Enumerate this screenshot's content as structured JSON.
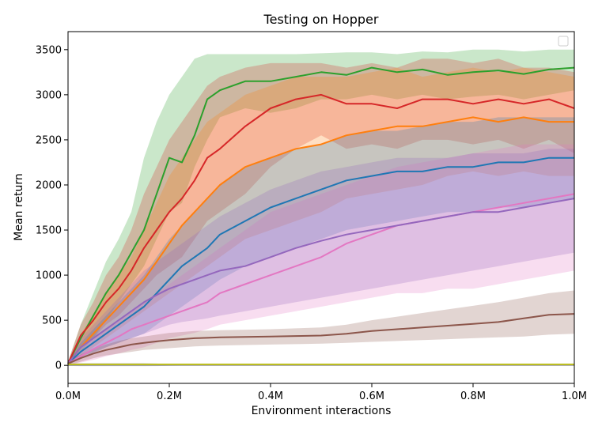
{
  "chart_data": {
    "type": "line",
    "title": "Testing on Hopper",
    "xlabel": "Environment interactions",
    "ylabel": "Mean return",
    "xlim": [
      0,
      1.0
    ],
    "ylim": [
      -200,
      3700
    ],
    "xticks": [
      0,
      0.2,
      0.4,
      0.6,
      0.8,
      1.0
    ],
    "xtick_labels": [
      "0.0M",
      "0.2M",
      "0.4M",
      "0.6M",
      "0.8M",
      "1.0M"
    ],
    "yticks": [
      0,
      500,
      1000,
      1500,
      2000,
      2500,
      3000,
      3500
    ],
    "ytick_labels": [
      "0",
      "500",
      "1000",
      "1500",
      "2000",
      "2500",
      "3000",
      "3500"
    ],
    "legend": "top-right (empty)",
    "grid": false,
    "band_opacity": 0.25,
    "x": [
      0,
      0.025,
      0.05,
      0.075,
      0.1,
      0.125,
      0.15,
      0.175,
      0.2,
      0.225,
      0.25,
      0.275,
      0.3,
      0.35,
      0.4,
      0.45,
      0.5,
      0.55,
      0.6,
      0.65,
      0.7,
      0.75,
      0.8,
      0.85,
      0.9,
      0.95,
      1.0
    ],
    "series": [
      {
        "color": "#2ca02c",
        "values": [
          20,
          300,
          550,
          800,
          1000,
          1250,
          1500,
          1900,
          2300,
          2250,
          2550,
          2950,
          3050,
          3150,
          3150,
          3200,
          3250,
          3220,
          3300,
          3250,
          3280,
          3220,
          3250,
          3270,
          3230,
          3280,
          3300
        ],
        "upper": [
          40,
          450,
          800,
          1150,
          1400,
          1700,
          2300,
          2700,
          3000,
          3200,
          3400,
          3450,
          3450,
          3450,
          3450,
          3450,
          3460,
          3470,
          3470,
          3450,
          3480,
          3470,
          3500,
          3500,
          3480,
          3500,
          3500
        ],
        "lower": [
          0,
          150,
          300,
          500,
          700,
          900,
          1100,
          1400,
          1700,
          1800,
          2200,
          2500,
          2750,
          2850,
          2800,
          2850,
          2950,
          2950,
          3000,
          2950,
          3000,
          2950,
          2980,
          3000,
          2950,
          3000,
          3050
        ]
      },
      {
        "color": "#d62728",
        "values": [
          20,
          330,
          500,
          700,
          850,
          1050,
          1300,
          1500,
          1700,
          1850,
          2050,
          2300,
          2400,
          2650,
          2850,
          2950,
          3000,
          2900,
          2900,
          2850,
          2950,
          2950,
          2900,
          2950,
          2900,
          2950,
          2850
        ],
        "upper": [
          40,
          450,
          700,
          1000,
          1200,
          1500,
          1900,
          2200,
          2500,
          2700,
          2900,
          3100,
          3200,
          3300,
          3350,
          3350,
          3350,
          3300,
          3350,
          3300,
          3400,
          3400,
          3350,
          3400,
          3300,
          3300,
          3250
        ],
        "lower": [
          0,
          200,
          300,
          450,
          550,
          700,
          850,
          1000,
          1100,
          1200,
          1400,
          1600,
          1700,
          1900,
          2200,
          2400,
          2550,
          2400,
          2450,
          2400,
          2500,
          2500,
          2450,
          2500,
          2400,
          2500,
          2350
        ]
      },
      {
        "color": "#ff7f0e",
        "values": [
          20,
          200,
          350,
          500,
          650,
          800,
          950,
          1150,
          1350,
          1550,
          1700,
          1850,
          2000,
          2200,
          2300,
          2400,
          2450,
          2550,
          2600,
          2650,
          2650,
          2700,
          2750,
          2700,
          2750,
          2700,
          2700
        ],
        "upper": [
          40,
          350,
          550,
          800,
          1000,
          1200,
          1500,
          1800,
          2100,
          2300,
          2500,
          2700,
          2800,
          3000,
          3100,
          3200,
          3200,
          3200,
          3250,
          3300,
          3200,
          3250,
          3300,
          3250,
          3300,
          3250,
          3200
        ],
        "lower": [
          0,
          100,
          200,
          300,
          400,
          500,
          600,
          700,
          800,
          900,
          1000,
          1100,
          1200,
          1400,
          1500,
          1600,
          1700,
          1850,
          1900,
          1950,
          2000,
          2100,
          2150,
          2100,
          2150,
          2100,
          2100
        ]
      },
      {
        "color": "#1f77b4",
        "values": [
          20,
          150,
          250,
          350,
          450,
          550,
          650,
          800,
          950,
          1100,
          1200,
          1300,
          1450,
          1600,
          1750,
          1850,
          1950,
          2050,
          2100,
          2150,
          2150,
          2200,
          2200,
          2250,
          2250,
          2300,
          2300
        ],
        "upper": [
          40,
          250,
          400,
          550,
          700,
          850,
          1000,
          1200,
          1400,
          1550,
          1700,
          1850,
          2000,
          2200,
          2300,
          2400,
          2450,
          2550,
          2600,
          2600,
          2650,
          2700,
          2700,
          2750,
          2750,
          2750,
          2750
        ],
        "lower": [
          0,
          80,
          130,
          200,
          250,
          300,
          350,
          450,
          550,
          650,
          750,
          850,
          950,
          1100,
          1200,
          1300,
          1400,
          1500,
          1550,
          1600,
          1650,
          1700,
          1700,
          1750,
          1750,
          1800,
          1850
        ]
      },
      {
        "color": "#e377c2",
        "values": [
          20,
          100,
          180,
          250,
          320,
          400,
          450,
          500,
          550,
          600,
          650,
          700,
          800,
          900,
          1000,
          1100,
          1200,
          1350,
          1450,
          1550,
          1600,
          1650,
          1700,
          1750,
          1800,
          1850,
          1900
        ],
        "upper": [
          40,
          200,
          300,
          400,
          500,
          600,
          700,
          800,
          900,
          1000,
          1100,
          1200,
          1300,
          1500,
          1700,
          1800,
          1900,
          2000,
          2100,
          2200,
          2250,
          2300,
          2350,
          2400,
          2450,
          2450,
          2450
        ],
        "lower": [
          0,
          30,
          60,
          100,
          130,
          170,
          200,
          250,
          300,
          330,
          360,
          400,
          450,
          500,
          550,
          600,
          650,
          700,
          750,
          800,
          800,
          850,
          850,
          900,
          950,
          1000,
          1050
        ]
      },
      {
        "color": "#9467bd",
        "values": [
          20,
          200,
          300,
          400,
          500,
          600,
          700,
          780,
          850,
          900,
          950,
          1000,
          1050,
          1100,
          1200,
          1300,
          1380,
          1450,
          1500,
          1550,
          1600,
          1650,
          1700,
          1700,
          1750,
          1800,
          1850
        ],
        "upper": [
          40,
          300,
          450,
          600,
          750,
          900,
          1050,
          1150,
          1250,
          1350,
          1450,
          1550,
          1650,
          1800,
          1950,
          2050,
          2150,
          2200,
          2250,
          2300,
          2300,
          2300,
          2350,
          2350,
          2350,
          2400,
          2400
        ],
        "lower": [
          0,
          100,
          150,
          200,
          250,
          300,
          350,
          400,
          450,
          480,
          500,
          520,
          550,
          600,
          650,
          700,
          750,
          800,
          850,
          900,
          950,
          1000,
          1050,
          1100,
          1150,
          1200,
          1250
        ]
      },
      {
        "color": "#8c564b",
        "values": [
          20,
          80,
          130,
          170,
          200,
          230,
          250,
          265,
          280,
          290,
          300,
          305,
          310,
          315,
          320,
          325,
          330,
          350,
          380,
          400,
          420,
          440,
          460,
          480,
          520,
          560,
          570
        ],
        "upper": [
          40,
          120,
          180,
          230,
          270,
          300,
          320,
          340,
          360,
          370,
          380,
          385,
          390,
          395,
          400,
          410,
          420,
          450,
          500,
          540,
          580,
          620,
          660,
          700,
          750,
          800,
          830
        ],
        "lower": [
          0,
          40,
          80,
          110,
          130,
          150,
          170,
          180,
          190,
          200,
          210,
          215,
          220,
          225,
          230,
          235,
          240,
          250,
          260,
          270,
          280,
          290,
          300,
          310,
          320,
          340,
          350
        ]
      },
      {
        "color": "#7f7f7f",
        "values": [
          5,
          5,
          5,
          5,
          5,
          5,
          5,
          5,
          5,
          5,
          5,
          5,
          5,
          5,
          5,
          5,
          5,
          5,
          5,
          5,
          5,
          5,
          5,
          5,
          5,
          5,
          5
        ],
        "upper": [
          15,
          25,
          25,
          25,
          25,
          25,
          25,
          20,
          15,
          12,
          12,
          12,
          12,
          12,
          12,
          12,
          12,
          12,
          12,
          12,
          12,
          12,
          12,
          12,
          12,
          12,
          12
        ],
        "lower": [
          -5,
          -10,
          -10,
          -10,
          -10,
          -10,
          -10,
          -8,
          -5,
          -3,
          -3,
          -3,
          -3,
          -3,
          -3,
          -3,
          -3,
          -3,
          -3,
          -3,
          -3,
          -3,
          -3,
          -3,
          -3,
          -3,
          -3
        ]
      },
      {
        "color": "#bcbd22",
        "values": [
          10,
          10,
          10,
          10,
          10,
          10,
          10,
          10,
          10,
          10,
          10,
          10,
          10,
          10,
          10,
          10,
          10,
          10,
          10,
          10,
          10,
          10,
          10,
          10,
          10,
          10,
          10
        ],
        "upper": [
          15,
          15,
          15,
          15,
          15,
          15,
          15,
          15,
          15,
          15,
          15,
          15,
          15,
          15,
          15,
          15,
          15,
          15,
          15,
          15,
          15,
          15,
          15,
          15,
          15,
          15,
          15
        ],
        "lower": [
          5,
          5,
          5,
          5,
          5,
          5,
          5,
          5,
          5,
          5,
          5,
          5,
          5,
          5,
          5,
          5,
          5,
          5,
          5,
          5,
          5,
          5,
          5,
          5,
          5,
          5,
          5
        ]
      }
    ]
  }
}
